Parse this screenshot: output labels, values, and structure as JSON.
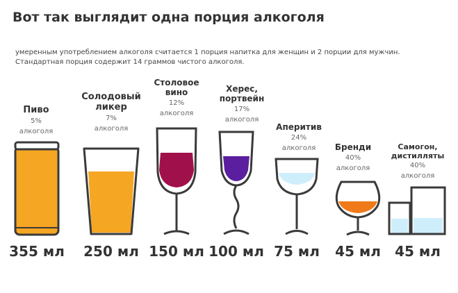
{
  "title": "Вот так выглядит одна порция алкоголя",
  "intro": {
    "line1": "умеренным употреблением алкоголя считается 1 порция напитка для женщин и 2 порции для мужчин.",
    "line2": "Стандартная порция содержит 14 граммов чистого алкоголя."
  },
  "alcohol_word": "алкоголя",
  "drinks": [
    {
      "name": "Пиво",
      "percent": "5%",
      "volume": "355 мл",
      "color": "#f5a623"
    },
    {
      "name": "Солодовый ликер",
      "name_l1": "Солодовый",
      "name_l2": "ликер",
      "percent": "7%",
      "volume": "250 мл",
      "color": "#f5a623"
    },
    {
      "name": "Столовое вино",
      "name_l1": "Столовое",
      "name_l2": "вино",
      "percent": "12%",
      "volume": "150 мл",
      "color": "#a0104a"
    },
    {
      "name": "Херес, портвейн",
      "name_l1": "Херес,",
      "name_l2": "портвейн",
      "percent": "17%",
      "volume": "100 мл",
      "color": "#5b1e9e"
    },
    {
      "name": "Аперитив",
      "percent": "24%",
      "volume": "75 мл",
      "color": "#cfeefc"
    },
    {
      "name": "Бренди",
      "percent": "40%",
      "volume": "45 мл",
      "color": "#f07a1a"
    },
    {
      "name": "Самогон, дистилляты",
      "name_l1": "Самогон,",
      "name_l2": "дистилляты",
      "percent": "40%",
      "volume": "45 мл",
      "color": "#cfeefc"
    }
  ],
  "colors": {
    "outline": "#3a3a3a",
    "text": "#333333",
    "muted": "#666666"
  }
}
